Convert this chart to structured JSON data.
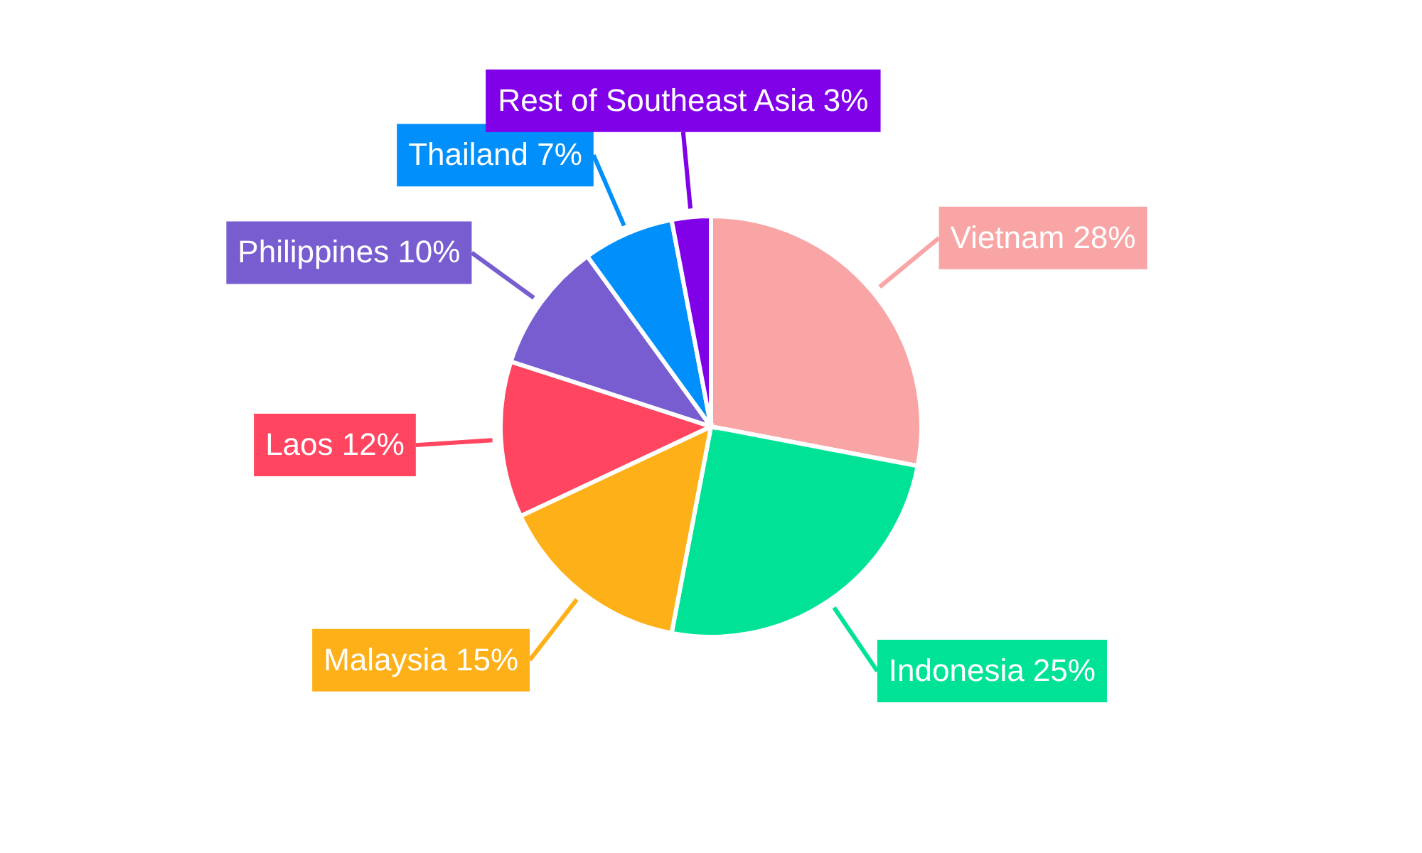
{
  "chart_data": {
    "type": "pie",
    "categories": [
      "Vietnam",
      "Indonesia",
      "Malaysia",
      "Laos",
      "Philippines",
      "Thailand",
      "Rest of Southeast Asia"
    ],
    "values": [
      28,
      25,
      15,
      12,
      10,
      7,
      3
    ],
    "value_labels": [
      "28%",
      "25%",
      "15%",
      "12%",
      "10%",
      "7%",
      "3%"
    ],
    "colors": [
      "#f9a5a5",
      "#00e396",
      "#feb019",
      "#ff4560",
      "#775dd0",
      "#008ffb",
      "#8000e8"
    ]
  }
}
